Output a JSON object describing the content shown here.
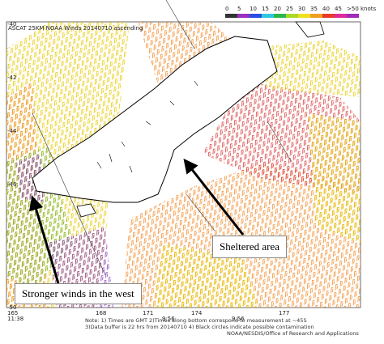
{
  "header": {
    "title": "ASCAT 25KM NOAA Winds 20140710 ascending"
  },
  "legend": {
    "labels": [
      "0",
      "5",
      "10",
      "15",
      "20",
      "25",
      "30",
      "35",
      "40",
      "45",
      ">50 knots"
    ]
  },
  "axes": {
    "lat_labels": [
      "-40",
      "-42",
      "-44",
      "-46",
      "-50"
    ],
    "lon_labels": [
      "165",
      "168",
      "171",
      "174",
      "177"
    ],
    "time_labels": [
      "11:38",
      "9:56",
      "9:56"
    ]
  },
  "footer": {
    "notes": [
      "Note: 1) Times are GMT 2)Times along bottom correspond to measurement at ~45S",
      "3)Data buffer is 22 hrs from 20140710 4) Black circles indicate possible contamination",
      "NOAA/NESDIS/Office of Research and Applications"
    ]
  },
  "annotations": {
    "sheltered": "Sheltered area",
    "stronger": "Stronger winds in the west"
  }
}
